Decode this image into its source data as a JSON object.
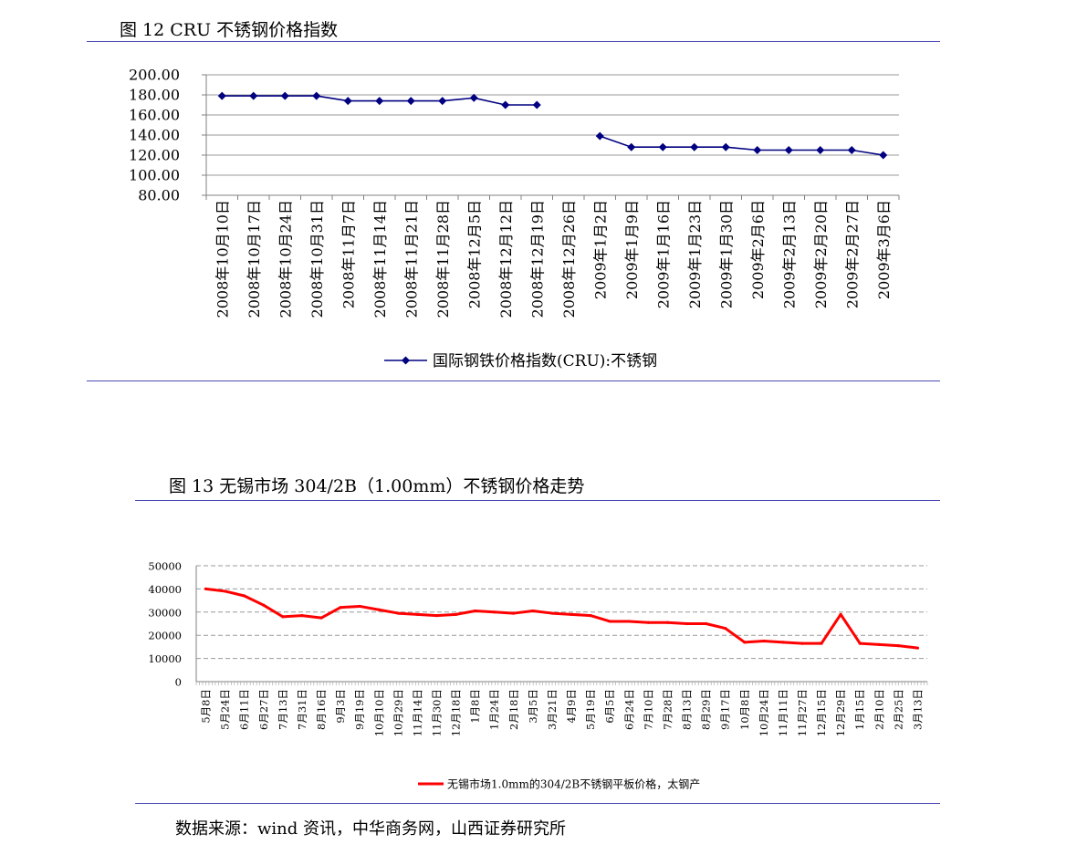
{
  "figures": {
    "fig12_title": "图 12 CRU 不锈钢价格指数",
    "fig13_title": "图 13 无锡市场 304/2B（1.00mm）不锈钢价格走势",
    "source": "数据来源：wind 资讯，中华商务网，山西证券研究所"
  },
  "chart_data": [
    {
      "type": "line",
      "title": "",
      "xlabel": "",
      "ylabel": "",
      "ylim": [
        80,
        200
      ],
      "yticks": [
        "200.00",
        "180.00",
        "160.00",
        "140.00",
        "120.00",
        "100.00",
        "80.00"
      ],
      "ytick_values": [
        200,
        180,
        160,
        140,
        120,
        100,
        80
      ],
      "grid": true,
      "legend": "bottom",
      "categories": [
        "2008年10月10日",
        "2008年10月17日",
        "2008年10月24日",
        "2008年10月31日",
        "2008年11月7日",
        "2008年11月14日",
        "2008年11月21日",
        "2008年11月28日",
        "2008年12月5日",
        "2008年12月12日",
        "2008年12月19日",
        "2008年12月26日",
        "2009年1月2日",
        "2009年1月9日",
        "2009年1月16日",
        "2009年1月23日",
        "2009年1月30日",
        "2009年2月6日",
        "2009年2月13日",
        "2009年2月20日",
        "2009年2月27日",
        "2009年3月6日"
      ],
      "series": [
        {
          "name": "国际钢铁价格指数(CRU):不锈钢",
          "color": "#000080",
          "marker": "diamond",
          "values": [
            179,
            179,
            179,
            179,
            174,
            174,
            174,
            174,
            177,
            170,
            170,
            null,
            139,
            128,
            128,
            128,
            128,
            125,
            125,
            125,
            125,
            120
          ]
        }
      ]
    },
    {
      "type": "line",
      "title": "",
      "xlabel": "",
      "ylabel": "",
      "ylim": [
        0,
        50000
      ],
      "yticks": [
        "50000",
        "40000",
        "30000",
        "20000",
        "10000",
        "0"
      ],
      "ytick_values": [
        50000,
        40000,
        30000,
        20000,
        10000,
        0
      ],
      "grid": true,
      "legend": "bottom",
      "categories": [
        "5月8日",
        "5月24日",
        "6月11日",
        "6月27日",
        "7月13日",
        "7月31日",
        "8月16日",
        "9月3日",
        "9月19日",
        "10月10日",
        "10月29日",
        "11月14日",
        "11月30日",
        "12月18日",
        "1月8日",
        "1月24日",
        "2月18日",
        "3月5日",
        "3月21日",
        "4月9日",
        "5月19日",
        "6月5日",
        "6月24日",
        "7月10日",
        "7月28日",
        "8月13日",
        "8月29日",
        "9月17日",
        "10月8日",
        "10月24日",
        "11月11日",
        "11月27日",
        "12月15日",
        "12月29日",
        "1月15日",
        "2月10日",
        "2月25日",
        "3月13日"
      ],
      "series": [
        {
          "name": "无锡市场1.0mm的304/2B不锈钢平板价格，太钢产",
          "color": "#ff0000",
          "values": [
            40000,
            39000,
            37000,
            33000,
            28000,
            28500,
            27500,
            32000,
            32500,
            31000,
            29500,
            29000,
            28500,
            29000,
            30500,
            30000,
            29500,
            30500,
            29500,
            29000,
            28500,
            26000,
            26000,
            25500,
            25500,
            25000,
            25000,
            23000,
            17000,
            17500,
            17000,
            16500,
            16500,
            29000,
            16500,
            16000,
            15500,
            14500
          ]
        }
      ]
    }
  ]
}
